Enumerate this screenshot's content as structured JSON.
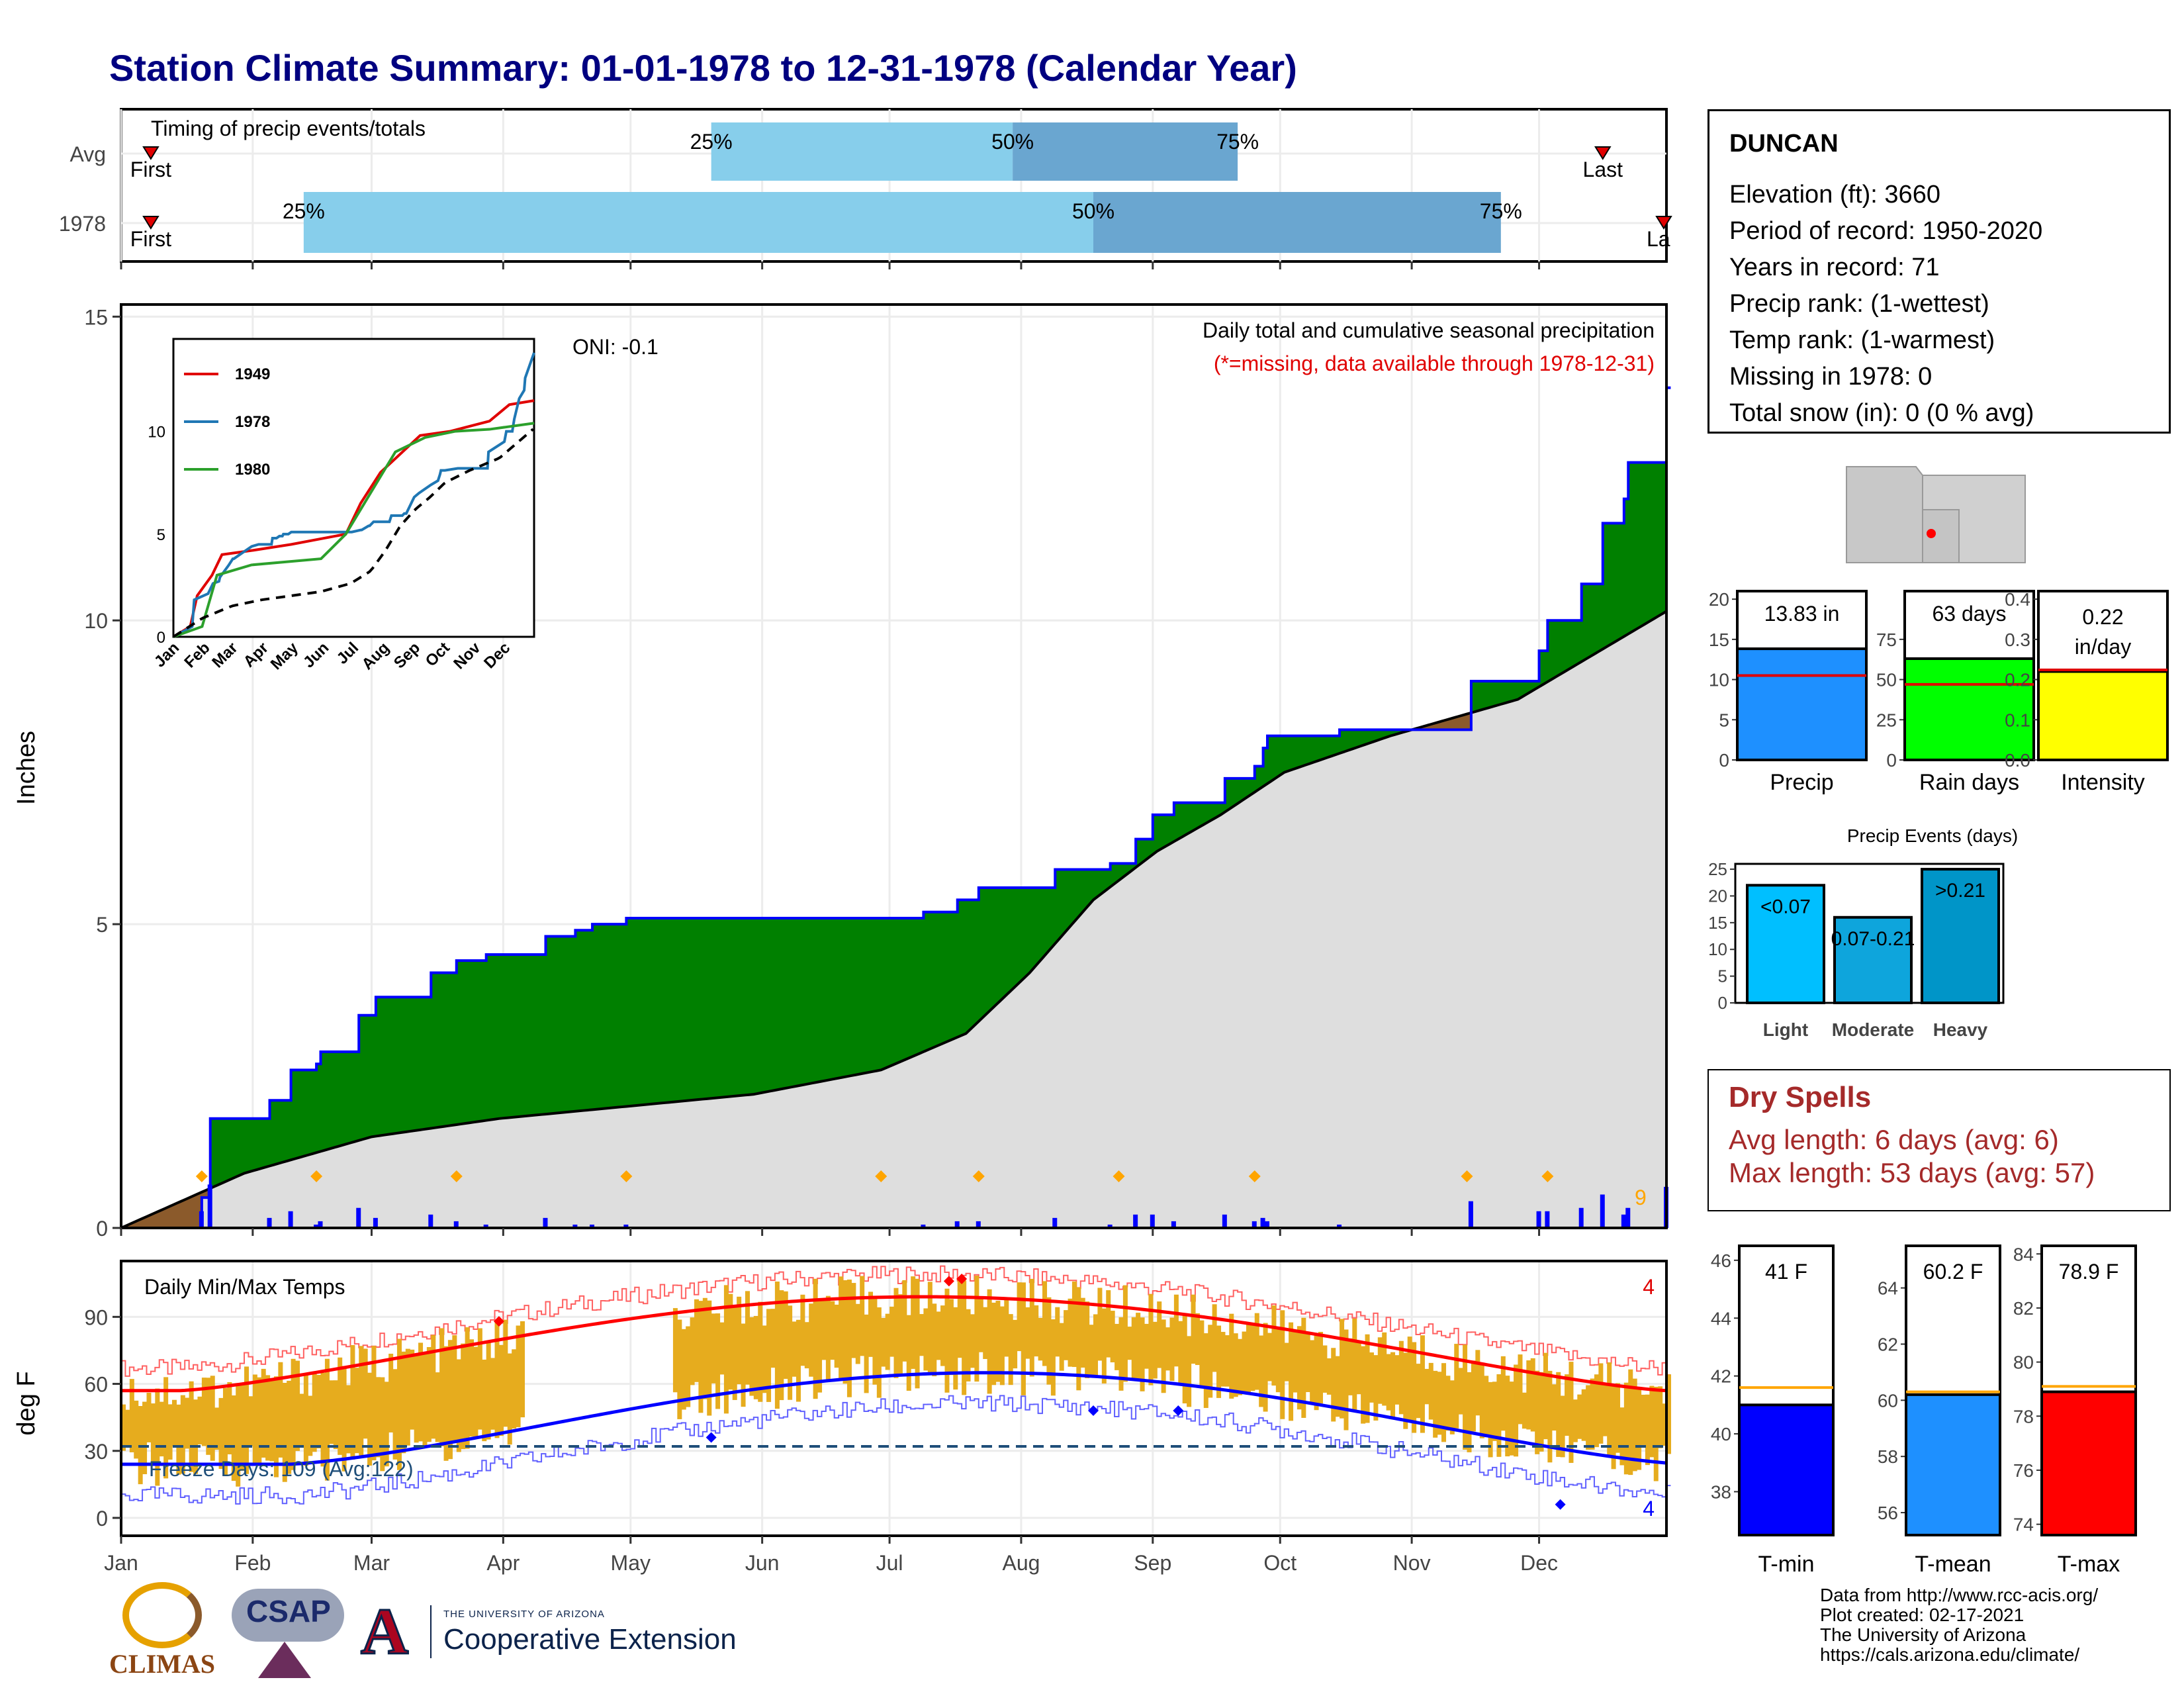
{
  "title": "Station Climate Summary: 01-01-1978 to 12-31-1978 (Calendar Year)",
  "months": [
    "Jan",
    "Feb",
    "Mar",
    "Apr",
    "May",
    "Jun",
    "Jul",
    "Aug",
    "Sep",
    "Oct",
    "Nov",
    "Dec"
  ],
  "timing": {
    "label": "Timing of precip events/totals",
    "rows": [
      "Avg",
      "1978"
    ],
    "first_label": "First",
    "last_label": "Last",
    "last_label_cut": "La",
    "avg_q": {
      "p25": "25%",
      "p50": "50%",
      "p75": "75%"
    },
    "yr_q": {
      "p25": "25%",
      "p50": "50%",
      "p75": "75%"
    },
    "avg_days": {
      "first": 8,
      "p25": 140,
      "p50": 211,
      "p75": 264,
      "last": 350
    },
    "yr_days": {
      "first": 8,
      "p25": 44,
      "p50": 230,
      "p75": 326,
      "last": 363
    }
  },
  "station": {
    "name": "DUNCAN",
    "lines": [
      "Elevation (ft): 3660",
      "Period of record: 1950-2020",
      "Years in record: 71",
      "Precip rank:  (1-wettest)",
      "Temp rank:  (1-warmest)",
      "Missing in 1978: 0",
      "Total snow (in): 0 (0 % avg)"
    ]
  },
  "precip_panel": {
    "ylabel": "Inches",
    "yticks": [
      "0",
      "5",
      "10",
      "15"
    ],
    "caption": "Daily total and cumulative seasonal precipitation",
    "missing_note": "(*=missing, data available through 1978-12-31)",
    "oni": "ONI: -0.1",
    "count_label": "9"
  },
  "inset": {
    "legend": [
      "1949",
      "1978",
      "1980"
    ],
    "yticks": [
      "0",
      "5",
      "10"
    ],
    "months": [
      "Jan",
      "Feb",
      "Mar",
      "Apr",
      "May",
      "Jun",
      "Jul",
      "Aug",
      "Sep",
      "Oct",
      "Nov",
      "Dec"
    ]
  },
  "temp_panel": {
    "ylabel": "deg F",
    "title": "Daily Min/Max Temps",
    "yticks": [
      "0",
      "30",
      "60",
      "90"
    ],
    "freeze": "Freeze Days: 109 (Avg:122)",
    "count_hi": "4",
    "count_lo": "4"
  },
  "mini_bars": [
    {
      "name": "Precip",
      "value_label": "13.83 in",
      "value": 13.83,
      "avg": 10.5,
      "ymax": 21,
      "yticks": [
        "0",
        "5",
        "10",
        "15",
        "20"
      ],
      "color": "#1e90ff"
    },
    {
      "name": "Rain days",
      "value_label": "63 days",
      "value": 63,
      "avg": 47,
      "ymax": 105,
      "yticks": [
        "0",
        "25",
        "50",
        "75"
      ],
      "color": "#00ff00"
    },
    {
      "name": "Intensity",
      "value_label": "0.22",
      "value_label2": "in/day",
      "value": 0.22,
      "avg": 0.224,
      "ymax": 0.42,
      "yticks": [
        "0.0",
        "0.1",
        "0.2",
        "0.3",
        "0.4"
      ],
      "color": "#ffff00"
    }
  ],
  "events": {
    "title": "Precip Events (days)",
    "yticks": [
      "0",
      "5",
      "10",
      "15",
      "20",
      "25"
    ],
    "bars": [
      {
        "name": "Light",
        "label": "<0.07",
        "value": 22,
        "color": "#00bfff"
      },
      {
        "name": "Moderate",
        "label": "0.07-0.21",
        "value": 16,
        "color": "#0ea5dc"
      },
      {
        "name": "Heavy",
        "label": ">0.21",
        "value": 25,
        "color": "#0095c8"
      }
    ]
  },
  "dry_spells": {
    "title": "Dry Spells",
    "avg": "Avg length: 6 days (avg: 6)",
    "max": "Max length: 53 days (avg: 57)"
  },
  "temp_bars": [
    {
      "name": "T-min",
      "value_label": "41 F",
      "value": 41,
      "avg": 41.6,
      "ymin": 36.5,
      "ymax": 46.5,
      "yticks": [
        "38",
        "40",
        "42",
        "44",
        "46"
      ],
      "color": "#0000ff"
    },
    {
      "name": "T-mean",
      "value_label": "60.2 F",
      "value": 60.2,
      "avg": 60.3,
      "ymin": 55.2,
      "ymax": 65.5,
      "yticks": [
        "56",
        "58",
        "60",
        "62",
        "64"
      ],
      "color": "#1e90ff"
    },
    {
      "name": "T-max",
      "value_label": "78.9 F",
      "value": 78.9,
      "avg": 79.1,
      "ymin": 73.6,
      "ymax": 84.3,
      "yticks": [
        "74",
        "76",
        "78",
        "80",
        "82",
        "84"
      ],
      "color": "#ff0000"
    }
  ],
  "footer": {
    "lines": [
      "Data from http://www.rcc-acis.org/",
      "Plot created: 02-17-2021",
      "The University of Arizona",
      "https://cals.arizona.edu/climate/"
    ],
    "logo1": "CLIMAS",
    "logo2": "CSAP",
    "logo3_small": "THE UNIVERSITY OF ARIZONA",
    "logo3_big": "Cooperative Extension"
  },
  "colors": {
    "title": "#000080",
    "dark_green": "#008000",
    "brown": "#8b5a2b",
    "grey": "#dedede",
    "blue": "#0000ff",
    "orange": "#ffa500",
    "temp_bar": "#e6ac1e",
    "light_blue": "#87ceeb",
    "mid_blue": "#6aa6d0"
  },
  "chart_data": [
    {
      "type": "area",
      "title": "Daily total and cumulative seasonal precipitation",
      "ylabel": "Inches",
      "ylim": [
        0,
        15
      ],
      "x_unit": "day of year",
      "series": [
        {
          "name": "1978",
          "x": [
            1,
            20,
            22,
            36,
            41,
            47,
            48,
            57,
            61,
            62,
            74,
            80,
            87,
            100,
            101,
            105,
            108,
            111,
            112,
            117,
            120,
            181,
            190,
            191,
            198,
            199,
            203,
            219,
            221,
            232,
            234,
            236,
            240,
            244,
            249,
            261,
            268,
            270,
            271,
            275,
            288,
            292,
            294,
            318,
            319,
            335,
            337,
            343,
            345,
            350,
            355,
            356,
            365
          ],
          "y": [
            0,
            0.5,
            1.8,
            2.1,
            2.6,
            2.7,
            2.9,
            3.5,
            3.8,
            3.8,
            4.2,
            4.4,
            4.5,
            4.5,
            4.8,
            4.8,
            4.9,
            4.9,
            5.0,
            5.0,
            5.1,
            5.1,
            5.2,
            5.2,
            5.4,
            5.4,
            5.6,
            5.6,
            5.9,
            5.9,
            6.0,
            6.0,
            6.4,
            6.8,
            7.0,
            7.4,
            7.6,
            7.9,
            8.1,
            8.1,
            8.2,
            8.2,
            8.2,
            8.2,
            9.0,
            9.5,
            10.0,
            10.0,
            10.6,
            11.6,
            12.0,
            12.6,
            13.83
          ]
        }
      ]
    },
    {
      "type": "line",
      "title": "Daily Min/Max Temps",
      "ylabel": "deg F",
      "ylim": [
        -5,
        115
      ],
      "series": [
        {
          "name": "Max normal",
          "x": [
            1,
            30,
            60,
            90,
            120,
            150,
            180,
            210,
            240,
            270,
            300,
            330,
            365
          ],
          "y": [
            57,
            60,
            67,
            74,
            82,
            92,
            99,
            98,
            94,
            88,
            76,
            64,
            57
          ]
        },
        {
          "name": "Min normal",
          "x": [
            1,
            30,
            60,
            90,
            120,
            150,
            180,
            210,
            240,
            270,
            300,
            330,
            365
          ],
          "y": [
            24,
            26,
            29,
            33,
            38,
            47,
            57,
            64,
            63,
            56,
            42,
            31,
            24
          ]
        }
      ]
    }
  ]
}
